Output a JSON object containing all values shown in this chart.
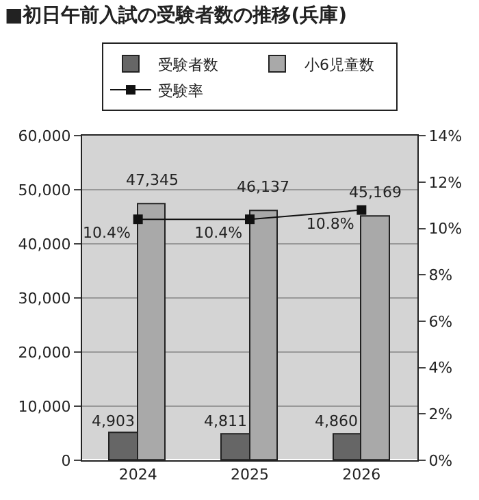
{
  "chart_data": {
    "type": "bar",
    "title": "■初日午前入試の受験者数の推移(兵庫)",
    "categories": [
      "2024",
      "2025",
      "2026"
    ],
    "series": [
      {
        "name": "受験者数",
        "color": "#666666",
        "values": [
          4903,
          4811,
          4860
        ],
        "value_labels": [
          "4,903",
          "4,811",
          "4,860"
        ]
      },
      {
        "name": "小6児童数",
        "color": "#a9a9a9",
        "values": [
          47345,
          46137,
          45169
        ],
        "value_labels": [
          "47,345",
          "46,137",
          "45,169"
        ]
      },
      {
        "name": "受験率",
        "type": "line",
        "axis": "y2",
        "color": "#111111",
        "marker": "square",
        "line_style": "solid",
        "values": [
          10.4,
          10.4,
          10.8
        ],
        "value_labels": [
          "10.4%",
          "10.4%",
          "10.8%"
        ]
      }
    ],
    "ylim": [
      0,
      60000
    ],
    "yticks": [
      {
        "value": 0,
        "label": "0"
      },
      {
        "value": 10000,
        "label": "10,000"
      },
      {
        "value": 20000,
        "label": "20,000"
      },
      {
        "value": 30000,
        "label": "30,000"
      },
      {
        "value": 40000,
        "label": "40,000"
      },
      {
        "value": 50000,
        "label": "50,000"
      },
      {
        "value": 60000,
        "label": "60,000"
      }
    ],
    "y2lim": [
      0,
      14
    ],
    "y2ticks": [
      {
        "value": 0,
        "label": "0%"
      },
      {
        "value": 2,
        "label": "2%"
      },
      {
        "value": 4,
        "label": "4%"
      },
      {
        "value": 6,
        "label": "6%"
      },
      {
        "value": 8,
        "label": "8%"
      },
      {
        "value": 10,
        "label": "10%"
      },
      {
        "value": 12,
        "label": "12%"
      },
      {
        "value": 14,
        "label": "14%"
      }
    ],
    "grid": "y",
    "legend": "top"
  }
}
